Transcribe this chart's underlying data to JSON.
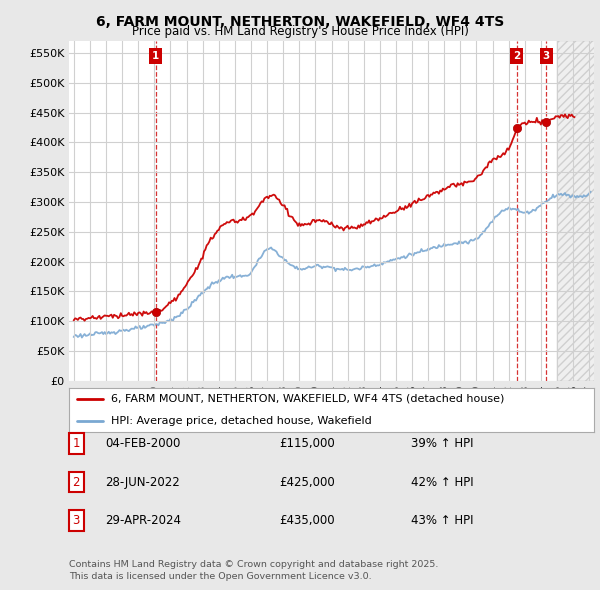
{
  "title": "6, FARM MOUNT, NETHERTON, WAKEFIELD, WF4 4TS",
  "subtitle": "Price paid vs. HM Land Registry's House Price Index (HPI)",
  "ylabel_ticks": [
    "£0",
    "£50K",
    "£100K",
    "£150K",
    "£200K",
    "£250K",
    "£300K",
    "£350K",
    "£400K",
    "£450K",
    "£500K",
    "£550K"
  ],
  "ytick_values": [
    0,
    50000,
    100000,
    150000,
    200000,
    250000,
    300000,
    350000,
    400000,
    450000,
    500000,
    550000
  ],
  "ylim": [
    0,
    570000
  ],
  "xlim_start": 1994.7,
  "xlim_end": 2027.3,
  "figure_bg": "#e8e8e8",
  "plot_bg": "#ffffff",
  "grid_color": "#d0d0d0",
  "hatch_color": "#d8d8d8",
  "sale_marker_color": "#cc0000",
  "hpi_line_color": "#7aa8d2",
  "property_line_color": "#cc0000",
  "vline_color": "#cc0000",
  "hatch_start": 2025.0,
  "sale_points": [
    {
      "label": "1",
      "year": 2000.09,
      "price": 115000
    },
    {
      "label": "2",
      "year": 2022.49,
      "price": 425000
    },
    {
      "label": "3",
      "year": 2024.33,
      "price": 435000
    }
  ],
  "legend_property": "6, FARM MOUNT, NETHERTON, WAKEFIELD, WF4 4TS (detached house)",
  "legend_hpi": "HPI: Average price, detached house, Wakefield",
  "table_rows": [
    {
      "num": "1",
      "date": "04-FEB-2000",
      "price": "£115,000",
      "change": "39% ↑ HPI"
    },
    {
      "num": "2",
      "date": "28-JUN-2022",
      "price": "£425,000",
      "change": "42% ↑ HPI"
    },
    {
      "num": "3",
      "date": "29-APR-2024",
      "price": "£435,000",
      "change": "43% ↑ HPI"
    }
  ],
  "footer": "Contains HM Land Registry data © Crown copyright and database right 2025.\nThis data is licensed under the Open Government Licence v3.0.",
  "vline_years": [
    2000.09,
    2022.49,
    2024.33
  ],
  "hpi_base_years": [
    1995,
    1996,
    1997,
    1998,
    1999,
    2000,
    2001,
    2002,
    2003,
    2004,
    2005,
    2006,
    2007,
    2008,
    2009,
    2010,
    2011,
    2012,
    2013,
    2014,
    2015,
    2016,
    2017,
    2018,
    2019,
    2020,
    2021,
    2022,
    2023,
    2024,
    2025,
    2026,
    2027
  ],
  "hpi_base_vals": [
    75000,
    77000,
    80000,
    84000,
    88000,
    93000,
    102000,
    120000,
    148000,
    168000,
    175000,
    182000,
    220000,
    205000,
    188000,
    192000,
    190000,
    186000,
    190000,
    196000,
    204000,
    212000,
    220000,
    228000,
    232000,
    238000,
    268000,
    290000,
    282000,
    295000,
    312000,
    310000,
    315000
  ],
  "prop_base_years": [
    1995,
    1996,
    1997,
    1998,
    1999,
    2000,
    2001,
    2002,
    2003,
    2004,
    2005,
    2006,
    2007,
    2008,
    2009,
    2010,
    2011,
    2012,
    2013,
    2014,
    2015,
    2016,
    2017,
    2018,
    2019,
    2020,
    2021,
    2022,
    2022.6,
    2023,
    2024,
    2024.5,
    2025,
    2026,
    2027
  ],
  "prop_base_vals": [
    103000,
    105000,
    108000,
    110000,
    112000,
    115000,
    130000,
    160000,
    210000,
    255000,
    268000,
    278000,
    308000,
    295000,
    262000,
    268000,
    262000,
    255000,
    262000,
    272000,
    285000,
    297000,
    310000,
    322000,
    330000,
    340000,
    370000,
    390000,
    425000,
    432000,
    435000,
    438000,
    442000,
    445000,
    448000
  ]
}
